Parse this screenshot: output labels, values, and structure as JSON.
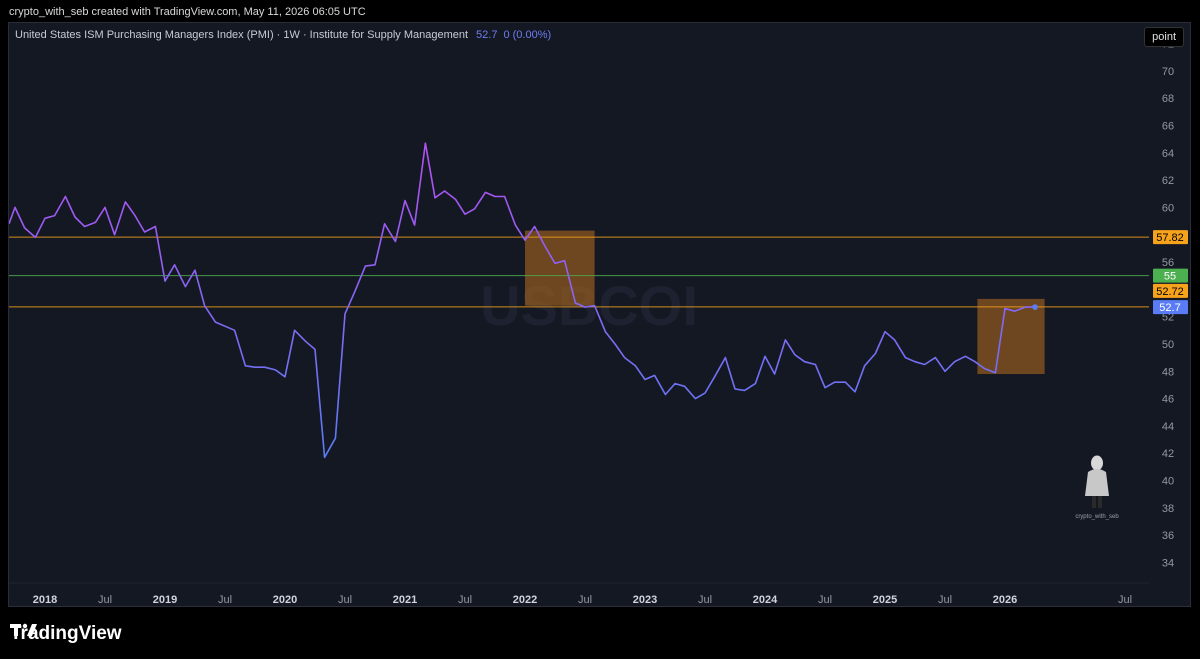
{
  "caption": "crypto_with_seb created with TradingView.com, May 11, 2026 06:05 UTC",
  "legend": {
    "title": "United States ISM Purchasing Managers Index (PMI) · 1W · Institute for Supply Management",
    "value": "52.7",
    "change": "0 (0.00%)"
  },
  "point_button": "point",
  "watermark": "USBCOI",
  "avatar_label": "crypto_with_seb",
  "footer_brand": "TradingView",
  "colors": {
    "line_start": "#b44ff0",
    "line_end": "#5b7cf7",
    "orange": "#f7a21b",
    "green": "#4caf50",
    "box": "#b86e1e"
  },
  "chart_data": {
    "type": "line",
    "title": "United States ISM Purchasing Managers Index (PMI)",
    "ylim": [
      32.5,
      73.5
    ],
    "xlim": [
      2017.7,
      2027.2
    ],
    "y_ticks": [
      34,
      36,
      38,
      40,
      42,
      44,
      46,
      48,
      50,
      52,
      54,
      56,
      58,
      60,
      62,
      64,
      66,
      68,
      70,
      72
    ],
    "x_ticks": [
      {
        "x": 2018.0,
        "label": "2018",
        "bold": true
      },
      {
        "x": 2018.5,
        "label": "Jul",
        "bold": false
      },
      {
        "x": 2019.0,
        "label": "2019",
        "bold": true
      },
      {
        "x": 2019.5,
        "label": "Jul",
        "bold": false
      },
      {
        "x": 2020.0,
        "label": "2020",
        "bold": true
      },
      {
        "x": 2020.5,
        "label": "Jul",
        "bold": false
      },
      {
        "x": 2021.0,
        "label": "2021",
        "bold": true
      },
      {
        "x": 2021.5,
        "label": "Jul",
        "bold": false
      },
      {
        "x": 2022.0,
        "label": "2022",
        "bold": true
      },
      {
        "x": 2022.5,
        "label": "Jul",
        "bold": false
      },
      {
        "x": 2023.0,
        "label": "2023",
        "bold": true
      },
      {
        "x": 2023.5,
        "label": "Jul",
        "bold": false
      },
      {
        "x": 2024.0,
        "label": "2024",
        "bold": true
      },
      {
        "x": 2024.5,
        "label": "Jul",
        "bold": false
      },
      {
        "x": 2025.0,
        "label": "2025",
        "bold": true
      },
      {
        "x": 2025.5,
        "label": "Jul",
        "bold": false
      },
      {
        "x": 2026.0,
        "label": "2026",
        "bold": true
      },
      {
        "x": 2027.0,
        "label": "Jul",
        "bold": false
      }
    ],
    "series": [
      {
        "x": [
          2017.7,
          2017.75,
          2017.83,
          2017.92,
          2018.0,
          2018.08,
          2018.17,
          2018.25,
          2018.33,
          2018.42,
          2018.5,
          2018.58,
          2018.67,
          2018.75,
          2018.83,
          2018.92,
          2019.0,
          2019.08,
          2019.17,
          2019.25,
          2019.33,
          2019.42,
          2019.5,
          2019.58,
          2019.67,
          2019.75,
          2019.83,
          2019.92,
          2020.0,
          2020.08,
          2020.17,
          2020.25,
          2020.33,
          2020.42,
          2020.5,
          2020.58,
          2020.67,
          2020.75,
          2020.83,
          2020.92,
          2021.0,
          2021.08,
          2021.17,
          2021.25,
          2021.33,
          2021.42,
          2021.5,
          2021.58,
          2021.67,
          2021.75,
          2021.83,
          2021.92,
          2022.0,
          2022.08,
          2022.17,
          2022.25,
          2022.33,
          2022.42,
          2022.5,
          2022.58,
          2022.67,
          2022.75,
          2022.83,
          2022.92,
          2023.0,
          2023.08,
          2023.17,
          2023.25,
          2023.33,
          2023.42,
          2023.5,
          2023.58,
          2023.67,
          2023.75,
          2023.83,
          2023.92,
          2024.0,
          2024.08,
          2024.17,
          2024.25,
          2024.33,
          2024.42,
          2024.5,
          2024.58,
          2024.67,
          2024.75,
          2024.83,
          2024.92,
          2025.0,
          2025.08,
          2025.17,
          2025.25,
          2025.33,
          2025.42,
          2025.5,
          2025.58,
          2025.67,
          2025.75,
          2025.83,
          2025.92,
          2026.0,
          2026.08,
          2026.17,
          2026.25
        ],
        "y": [
          58.8,
          60.0,
          58.5,
          57.8,
          59.2,
          59.4,
          60.8,
          59.3,
          58.6,
          58.9,
          60.0,
          58.0,
          60.4,
          59.4,
          58.2,
          58.6,
          54.6,
          55.8,
          54.2,
          55.4,
          52.8,
          51.6,
          51.3,
          51.0,
          48.4,
          48.3,
          48.3,
          48.1,
          47.6,
          51.0,
          50.2,
          49.6,
          41.7,
          43.1,
          52.2,
          53.8,
          55.7,
          55.8,
          58.8,
          57.5,
          60.5,
          58.7,
          64.7,
          60.7,
          61.2,
          60.6,
          59.5,
          59.9,
          61.1,
          60.8,
          60.8,
          58.7,
          57.6,
          58.6,
          57.1,
          55.9,
          56.1,
          53.0,
          52.7,
          52.8,
          50.9,
          50.0,
          49.0,
          48.4,
          47.4,
          47.7,
          46.3,
          47.1,
          46.9,
          46.0,
          46.4,
          47.6,
          49.0,
          46.7,
          46.6,
          47.1,
          49.1,
          47.8,
          50.3,
          49.2,
          48.7,
          48.5,
          46.8,
          47.2,
          47.2,
          46.5,
          48.4,
          49.3,
          50.9,
          50.3,
          49.0,
          48.7,
          48.5,
          49.0,
          48.0,
          48.7,
          49.1,
          48.7,
          48.2,
          47.9,
          52.6,
          52.4,
          52.7,
          52.7
        ]
      }
    ],
    "hlines": [
      {
        "value": 57.82,
        "label": "57.82",
        "color": "#f7a21b"
      },
      {
        "value": 55,
        "label": "55",
        "color": "#4caf50"
      },
      {
        "value": 52.72,
        "label": "52.72",
        "color": "#f7a21b"
      }
    ],
    "last_value_label": "52.7",
    "highlight_boxes": [
      {
        "x0": 2022.0,
        "x1": 2022.58,
        "y0": 52.8,
        "y1": 58.3
      },
      {
        "x0": 2025.77,
        "x1": 2026.33,
        "y0": 47.8,
        "y1": 53.3
      }
    ]
  }
}
